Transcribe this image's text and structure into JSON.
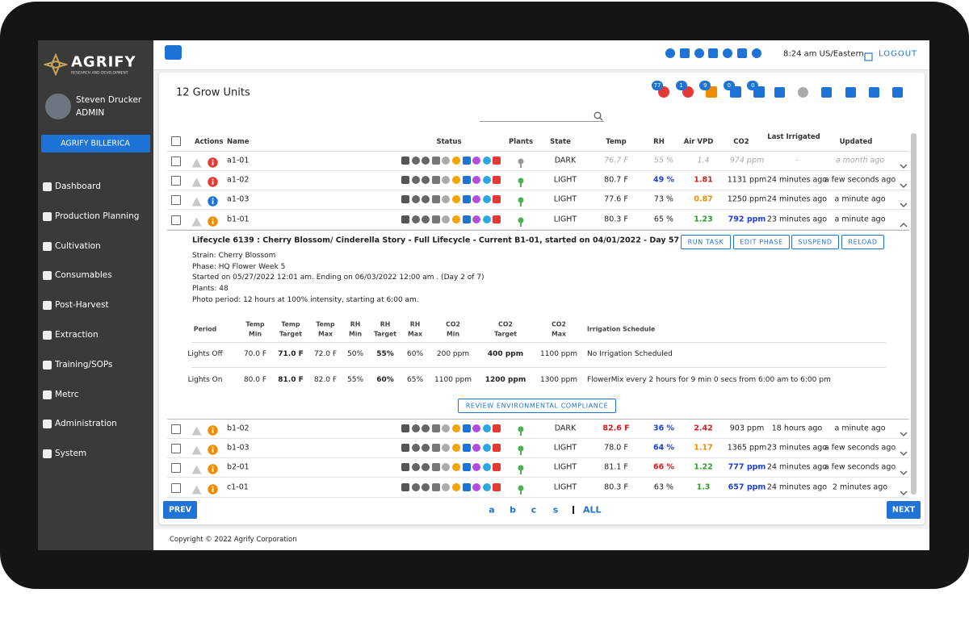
{
  "sidebar": {
    "logo": "AGRIFY",
    "logo_sub": "RESEARCH AND DEVELOPMENT",
    "user_name": "Steven Drucker",
    "user_role": "ADMIN",
    "facility": "AGRIFY BILLERICA",
    "menu": [
      "Dashboard",
      "Production Planning",
      "Cultivation",
      "Consumables",
      "Post-Harvest",
      "Extraction",
      "Training/SOPs",
      "Metrc",
      "Administration",
      "System"
    ]
  },
  "topbar": {
    "time": "8:24 am US/Eastern",
    "logout": "LOGOUT"
  },
  "header": {
    "title": "12 Grow Units",
    "badges": [
      "77",
      "1",
      "9",
      "0",
      "0"
    ]
  },
  "table": {
    "columns": [
      "Actions",
      "Name",
      "Status",
      "Plants",
      "State",
      "Temp",
      "RH",
      "Air VPD",
      "CO2",
      "Last Irrigated",
      "Updated"
    ],
    "rows": [
      {
        "name": "a1-01",
        "state": "DARK",
        "temp": "76.7 F",
        "rh": "55 %",
        "vpd": "1.4",
        "co2": "974 ppm",
        "irrigated": "-",
        "updated": "a month ago",
        "muted": true,
        "alert": "#e53935",
        "colors": {}
      },
      {
        "name": "a1-02",
        "state": "LIGHT",
        "temp": "80.7 F",
        "rh": "49 %",
        "vpd": "1.81",
        "co2": "1131 ppm",
        "irrigated": "24 minutes ago",
        "updated": "a few seconds ago",
        "alert": "#e53935",
        "colors": {
          "rh": "#1f3fd8",
          "vpd": "#d81b1b"
        }
      },
      {
        "name": "a1-03",
        "state": "LIGHT",
        "temp": "77.6 F",
        "rh": "73 %",
        "vpd": "0.87",
        "co2": "1250 ppm",
        "irrigated": "24 minutes ago",
        "updated": "a minute ago",
        "alert": "#1e73d6",
        "colors": {
          "vpd": "#f08c00"
        }
      },
      {
        "name": "b1-01",
        "state": "LIGHT",
        "temp": "80.3 F",
        "rh": "65 %",
        "vpd": "1.23",
        "co2": "792 ppm",
        "irrigated": "23 minutes ago",
        "updated": "a minute ago",
        "alert": "#f08c00",
        "expanded": true,
        "colors": {
          "vpd": "#2e9e2e",
          "co2": "#1f3fd8"
        }
      },
      {
        "name": "b1-02",
        "state": "DARK",
        "temp": "82.6 F",
        "rh": "36 %",
        "vpd": "2.42",
        "co2": "903 ppm",
        "irrigated": "18 hours ago",
        "updated": "a minute ago",
        "alert": "#f08c00",
        "colors": {
          "temp": "#d81b1b",
          "rh": "#1f3fd8",
          "vpd": "#d81b1b"
        }
      },
      {
        "name": "b1-03",
        "state": "LIGHT",
        "temp": "78.0 F",
        "rh": "64 %",
        "vpd": "1.17",
        "co2": "1365 ppm",
        "irrigated": "23 minutes ago",
        "updated": "a few seconds ago",
        "alert": "#f08c00",
        "colors": {
          "rh": "#1f3fd8",
          "vpd": "#f08c00"
        }
      },
      {
        "name": "b2-01",
        "state": "LIGHT",
        "temp": "81.1 F",
        "rh": "66 %",
        "vpd": "1.22",
        "co2": "777 ppm",
        "irrigated": "24 minutes ago",
        "updated": "a few seconds ago",
        "alert": "#f08c00",
        "colors": {
          "rh": "#d81b1b",
          "vpd": "#2e9e2e",
          "co2": "#1f3fd8"
        }
      },
      {
        "name": "c1-01",
        "state": "LIGHT",
        "temp": "80.3 F",
        "rh": "63 %",
        "vpd": "1.3",
        "co2": "657 ppm",
        "irrigated": "24 minutes ago",
        "updated": "2 minutes ago",
        "alert": "#f08c00",
        "colors": {
          "vpd": "#2e9e2e",
          "co2": "#1f3fd8"
        }
      }
    ]
  },
  "detail": {
    "title": "Lifecycle 6139 : Cherry Blossom/ Cinderella Story - Full Lifecycle - Current B1-01, started on 04/01/2022 - Day 57",
    "buttons": [
      "RUN TASK",
      "EDIT PHASE",
      "SUSPEND",
      "RELOAD"
    ],
    "lines": [
      "Strain: Cherry Blossom",
      "Phase: HQ Flower Week 5",
      "Started on 05/27/2022 12:01 am. Ending on 06/03/2022 12:00 am . (Day 2 of 7)",
      "Plants: 48",
      "Photo period: 12 hours at 100% intensity, starting at 6:00 am."
    ],
    "env_header": [
      [
        "Period"
      ],
      [
        "Temp",
        "Min"
      ],
      [
        "Temp",
        "Target"
      ],
      [
        "Temp",
        "Max"
      ],
      [
        "RH",
        "Min"
      ],
      [
        "RH",
        "Target"
      ],
      [
        "RH",
        "Max"
      ],
      [
        "CO2",
        "Min"
      ],
      [
        "CO2",
        "Target"
      ],
      [
        "CO2",
        "Max"
      ],
      [
        "Irrigation Schedule"
      ]
    ],
    "env_rows": [
      [
        "Lights Off",
        "70.0 F",
        "71.0 F",
        "72.0 F",
        "50%",
        "55%",
        "60%",
        "200 ppm",
        "400 ppm",
        "1100 ppm",
        "No Irrigation Scheduled"
      ],
      [
        "Lights On",
        "80.0 F",
        "81.0 F",
        "82.0 F",
        "55%",
        "60%",
        "65%",
        "1100 ppm",
        "1200 ppm",
        "1300 ppm",
        "FlowerMix every 2 hours for 9 min 0 secs from 6:00 am to 6:00 pm"
      ]
    ],
    "bold_columns": [
      2,
      5,
      8
    ],
    "review": "REVIEW ENVIRONMENTAL COMPLIANCE"
  },
  "pagination": {
    "prev": "PREV",
    "next": "NEXT",
    "pages": [
      "a",
      "b",
      "c",
      "s",
      "ALL"
    ]
  },
  "footer": "Copyright © 2022 Agrify Corporation"
}
